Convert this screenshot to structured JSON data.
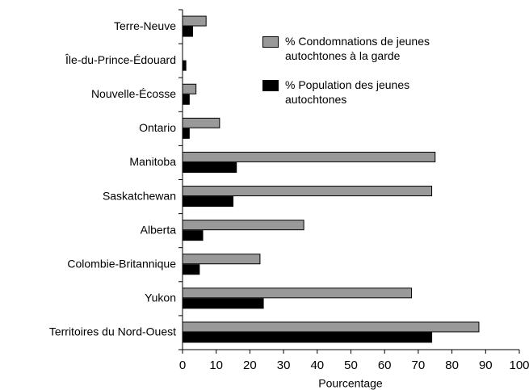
{
  "chart_data": {
    "type": "barh",
    "categories": [
      "Terre-Neuve",
      "Île-du-Prince-Édouard",
      "Nouvelle-Écosse",
      "Ontario",
      "Manitoba",
      "Saskatchewan",
      "Alberta",
      "Colombie-Britannique",
      "Yukon",
      "Territoires du Nord-Ouest"
    ],
    "series": [
      {
        "name": "% Condomnations de jeunes autochtones à la garde",
        "color": "#999999",
        "values": [
          7,
          0,
          4,
          11,
          75,
          74,
          36,
          23,
          68,
          88
        ]
      },
      {
        "name": "% Population des jeunes autochtones",
        "color": "#000000",
        "values": [
          3,
          1,
          2,
          2,
          16,
          15,
          6,
          5,
          24,
          74
        ]
      }
    ],
    "xlabel": "Pourcentage",
    "xlim": [
      0,
      100
    ],
    "xticks": [
      0,
      10,
      20,
      30,
      40,
      50,
      60,
      70,
      80,
      90,
      100
    ]
  }
}
